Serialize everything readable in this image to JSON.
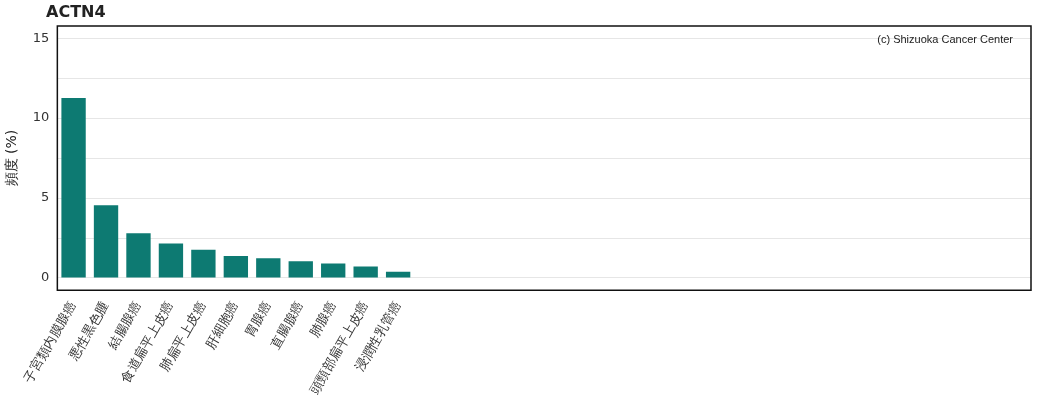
{
  "chart_data": {
    "type": "bar",
    "title": "ACTN4",
    "ylabel": "頻度 (%)",
    "categories": [
      "子宮類内膜腺癌",
      "悪性黒色腫",
      "結腸腺癌",
      "食道扁平上皮癌",
      "肺扁平上皮癌",
      "肝細胞癌",
      "胃腺癌",
      "直腸腺癌",
      "肺腺癌",
      "頭頸部扁平上皮癌",
      "浸潤性乳管癌",
      null,
      null,
      null,
      null,
      null,
      null,
      null,
      null,
      null,
      null,
      null,
      null,
      null,
      null,
      null,
      null,
      null,
      null,
      null
    ],
    "values": [
      11.25,
      4.55,
      2.8,
      2.15,
      1.76,
      1.37,
      1.24,
      1.04,
      0.91,
      0.72,
      0.39,
      null,
      null,
      null,
      null,
      null,
      null,
      null,
      null,
      null,
      null,
      null,
      null,
      null,
      null,
      null,
      null,
      null,
      null,
      null
    ],
    "color": "#0d7a72",
    "ylim": [
      -0.76,
      15.76
    ],
    "yticks": [
      0,
      {
        "value": 2.5,
        "label": null
      },
      5,
      {
        "value": 7.5,
        "label": null
      },
      10,
      {
        "value": 12.5,
        "label": null
      },
      15
    ],
    "grid": "y",
    "annotations": [
      "(c) Shizuoka Cancer Center"
    ]
  }
}
